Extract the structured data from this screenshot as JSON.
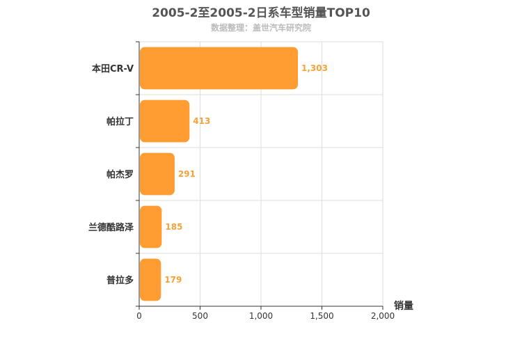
{
  "title": "2005-2至2005-2日系车型销量TOP10",
  "subtitle": "数据整理：盖世汽车研究院",
  "colors": {
    "bar": "#ff9d33",
    "label": "#f5a23a",
    "grid": "#dddddd",
    "axis": "#333333"
  },
  "chart_data": {
    "type": "bar",
    "orientation": "horizontal",
    "categories": [
      "本田CR-V",
      "帕拉丁",
      "帕杰罗",
      "兰德酷路泽",
      "普拉多"
    ],
    "values": [
      1303,
      413,
      291,
      185,
      179
    ],
    "value_labels": [
      "1,303",
      "413",
      "291",
      "185",
      "179"
    ],
    "xlabel": "销量",
    "ylabel": "",
    "xlim": [
      0,
      2000
    ],
    "xticks": [
      0,
      500,
      1000,
      1500,
      2000
    ],
    "xtick_labels": [
      "0",
      "500",
      "1,000",
      "1,500",
      "2,000"
    ],
    "grid": true
  }
}
